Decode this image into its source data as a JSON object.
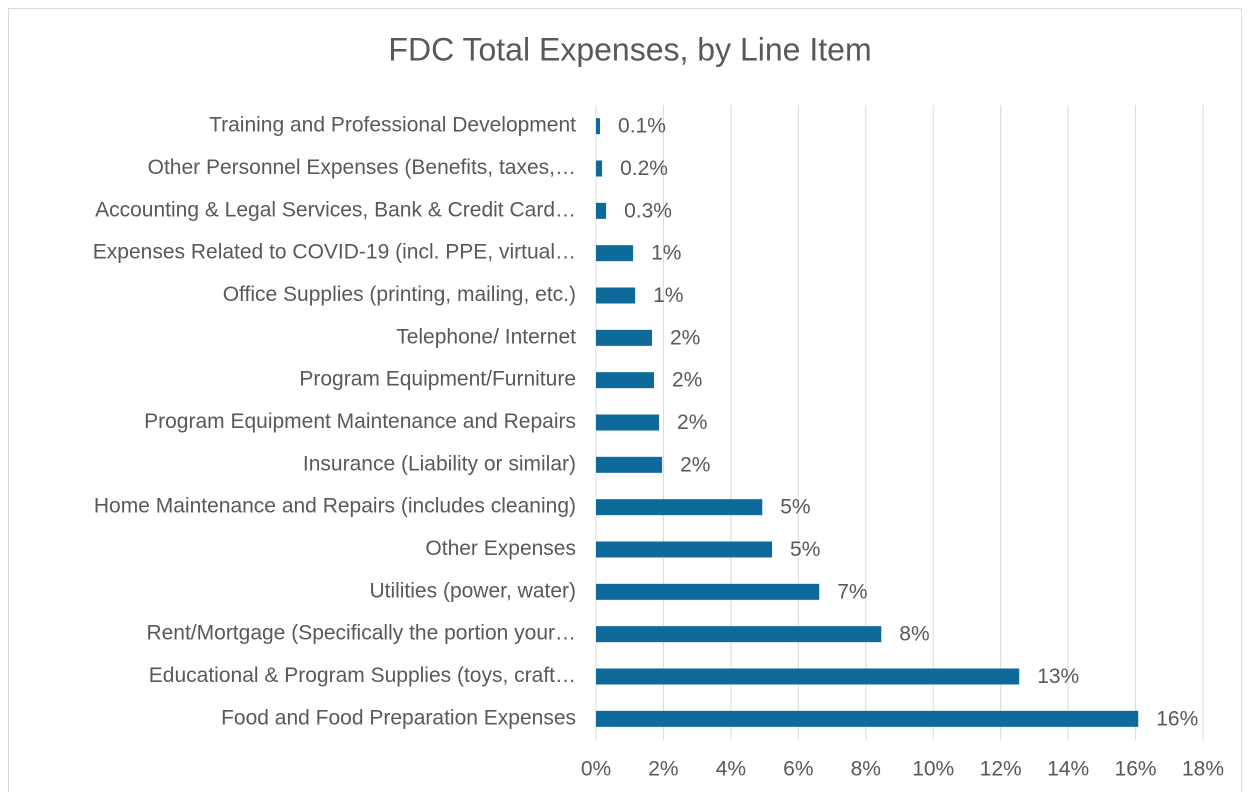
{
  "chart_data": {
    "type": "bar",
    "orientation": "horizontal",
    "title": "FDC Total Expenses, by Line Item",
    "categories": [
      "Training and Professional Development",
      "Other Personnel Expenses (Benefits, taxes,…",
      "Accounting & Legal Services, Bank & Credit Card…",
      "Expenses Related to COVID-19 (incl. PPE, virtual…",
      "Office Supplies (printing, mailing, etc.)",
      "Telephone/ Internet",
      "Program Equipment/Furniture",
      "Program Equipment Maintenance and Repairs",
      "Insurance (Liability or similar)",
      "Home Maintenance and Repairs (includes cleaning)",
      "Other Expenses",
      "Utilities (power, water)",
      "Rent/Mortgage (Specifically the portion your…",
      "Educational & Program Supplies (toys, craft…",
      "Food and Food Preparation Expenses"
    ],
    "values": [
      0.12,
      0.18,
      0.3,
      1.1,
      1.16,
      1.66,
      1.72,
      1.87,
      1.96,
      4.93,
      5.22,
      6.62,
      8.46,
      12.55,
      16.08
    ],
    "value_labels": [
      "0.1%",
      "0.2%",
      "0.3%",
      "1%",
      "1%",
      "2%",
      "2%",
      "2%",
      "2%",
      "5%",
      "5%",
      "7%",
      "8%",
      "13%",
      "16%"
    ],
    "color": "#0e6a9b",
    "xlim": [
      0,
      18
    ],
    "xticks": [
      {
        "value": 0,
        "label": "0%"
      },
      {
        "value": 2,
        "label": "2%"
      },
      {
        "value": 4,
        "label": "4%"
      },
      {
        "value": 6,
        "label": "6%"
      },
      {
        "value": 8,
        "label": "8%"
      },
      {
        "value": 10,
        "label": "10%"
      },
      {
        "value": 12,
        "label": "12%"
      },
      {
        "value": 14,
        "label": "14%"
      },
      {
        "value": 16,
        "label": "16%"
      },
      {
        "value": 18,
        "label": "18%"
      }
    ],
    "grid": true
  }
}
